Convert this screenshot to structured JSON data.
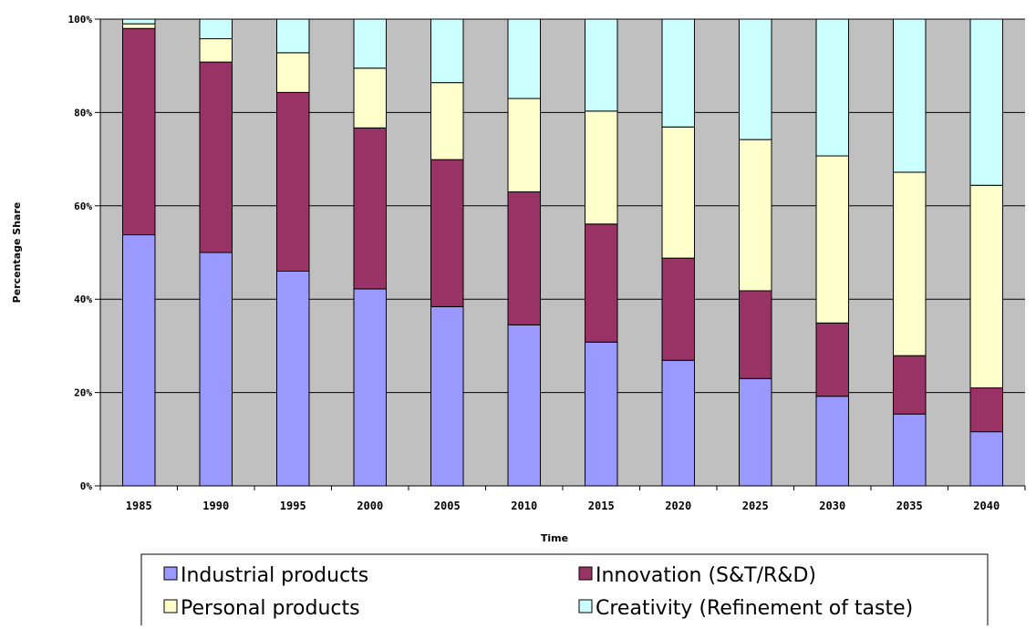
{
  "chart_data": {
    "type": "bar",
    "stacked": true,
    "percent_stacked": true,
    "xlabel": "Time",
    "ylabel": "Percentage Share",
    "ylim": [
      0,
      100
    ],
    "y_ticks": [
      "0%",
      "20%",
      "40%",
      "60%",
      "80%",
      "100%"
    ],
    "grid": true,
    "legend_position": "bottom",
    "categories": [
      "1985",
      "1990",
      "1995",
      "2000",
      "2005",
      "2010",
      "2015",
      "2020",
      "2025",
      "2030",
      "2035",
      "2040"
    ],
    "series": [
      {
        "name": "Industrial products",
        "color": "#9999ff",
        "values": [
          53.8,
          50.0,
          46.0,
          42.2,
          38.4,
          34.5,
          30.8,
          26.9,
          23.0,
          19.2,
          15.4,
          11.6
        ]
      },
      {
        "name": "Innovation (S&T/R&D)",
        "color": "#993366",
        "values": [
          44.2,
          40.8,
          38.3,
          34.5,
          31.5,
          28.5,
          25.3,
          21.9,
          18.8,
          15.7,
          12.5,
          9.4
        ]
      },
      {
        "name": "Personal products",
        "color": "#ffffcc",
        "values": [
          1.0,
          5.0,
          8.5,
          12.8,
          16.5,
          20.0,
          24.2,
          28.1,
          32.4,
          35.8,
          39.3,
          43.4
        ]
      },
      {
        "name": "Creativity (Refinement of taste)",
        "color": "#ccffff",
        "values": [
          1.0,
          4.2,
          7.2,
          10.5,
          13.6,
          17.0,
          19.7,
          23.1,
          25.8,
          29.3,
          32.8,
          35.6
        ]
      }
    ],
    "plot_background": "#c0c0c0",
    "gridline_color": "#000000"
  }
}
